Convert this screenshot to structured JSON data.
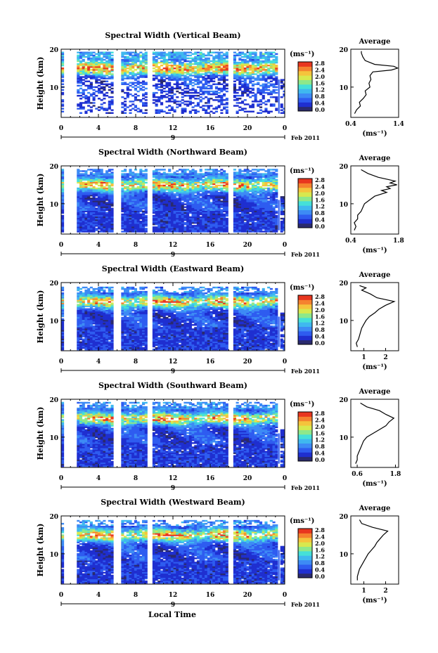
{
  "figure": {
    "xlabel": "Local Time",
    "date_label": "Feb 2011",
    "day_label": "9",
    "cbar_unit": "(ms⁻¹)",
    "avg_title": "Average",
    "avg_xlabel": "(ms⁻¹)"
  },
  "chart_data": [
    {
      "type": "heatmap",
      "title": "Spectral Width (Vertical Beam)",
      "ylabel": "Height (km)",
      "xlim": [
        0,
        24
      ],
      "ylim": [
        2,
        20
      ],
      "xticks": [
        "0",
        "4",
        "8",
        "12",
        "16",
        "20",
        "0"
      ],
      "yticks": [
        "10",
        "20"
      ],
      "cbar_ticks": [
        "0.0",
        "0.4",
        "0.8",
        "1.2",
        "1.6",
        "2.0",
        "2.4",
        "2.8"
      ],
      "coverage": "sparse-upper",
      "bottom": 3.0,
      "top": 19.2,
      "gaps": [
        [
          0.5,
          1.5
        ],
        [
          5.8,
          6.2
        ],
        [
          9.3,
          9.6
        ],
        [
          18.1,
          18.3
        ]
      ],
      "avg": {
        "xticks": [
          "0.4",
          "1.4"
        ],
        "xlim": [
          0.4,
          1.4
        ],
        "ylim": [
          2,
          20
        ],
        "yticks": [
          "10",
          "20"
        ],
        "profile": [
          [
            0.48,
            3
          ],
          [
            0.52,
            4
          ],
          [
            0.6,
            5
          ],
          [
            0.58,
            6
          ],
          [
            0.66,
            7
          ],
          [
            0.72,
            8
          ],
          [
            0.7,
            9
          ],
          [
            0.8,
            10
          ],
          [
            0.78,
            11
          ],
          [
            0.82,
            12
          ],
          [
            0.8,
            13
          ],
          [
            0.86,
            14
          ],
          [
            1.25,
            14.5
          ],
          [
            1.38,
            15
          ],
          [
            1.3,
            15.5
          ],
          [
            0.9,
            16
          ],
          [
            0.7,
            17
          ],
          [
            0.65,
            18
          ],
          [
            0.62,
            19
          ],
          [
            0.62,
            19.5
          ]
        ]
      }
    },
    {
      "type": "heatmap",
      "title": "Spectral Width (Northward Beam)",
      "ylabel": "Height (km)",
      "xlim": [
        0,
        24
      ],
      "ylim": [
        2,
        20
      ],
      "xticks": [
        "0",
        "4",
        "8",
        "12",
        "16",
        "20",
        "0"
      ],
      "yticks": [
        "10",
        "20"
      ],
      "cbar_ticks": [
        "0.0",
        "0.4",
        "0.8",
        "1.2",
        "1.6",
        "2.0",
        "2.4",
        "2.8"
      ],
      "coverage": "dense",
      "bottom": 2.5,
      "top": 19.2,
      "gaps": [
        [
          0.5,
          1.5
        ],
        [
          5.8,
          6.2
        ],
        [
          9.3,
          9.6
        ],
        [
          18.1,
          18.3
        ]
      ],
      "avg": {
        "xticks": [
          "0.4",
          "1.8"
        ],
        "xlim": [
          0.4,
          1.8
        ],
        "ylim": [
          2,
          20
        ],
        "yticks": [
          "10",
          "20"
        ],
        "profile": [
          [
            0.5,
            3
          ],
          [
            0.55,
            4
          ],
          [
            0.5,
            5
          ],
          [
            0.6,
            6
          ],
          [
            0.6,
            7
          ],
          [
            0.7,
            8
          ],
          [
            0.75,
            9
          ],
          [
            0.8,
            10
          ],
          [
            0.95,
            11
          ],
          [
            1.1,
            12
          ],
          [
            1.45,
            13
          ],
          [
            1.3,
            13.5
          ],
          [
            1.55,
            14
          ],
          [
            1.45,
            14.5
          ],
          [
            1.75,
            15
          ],
          [
            1.55,
            15.5
          ],
          [
            1.7,
            16
          ],
          [
            1.2,
            17
          ],
          [
            0.9,
            18
          ],
          [
            0.7,
            19
          ]
        ]
      }
    },
    {
      "type": "heatmap",
      "title": "Spectral Width (Eastward Beam)",
      "ylabel": "Height (km)",
      "xlim": [
        0,
        24
      ],
      "ylim": [
        2,
        20
      ],
      "xticks": [
        "0",
        "4",
        "8",
        "12",
        "16",
        "20",
        "0"
      ],
      "yticks": [
        "10",
        "20"
      ],
      "cbar_ticks": [
        "0.0",
        "0.4",
        "0.8",
        "1.2",
        "1.6",
        "2.0",
        "2.4",
        "2.8"
      ],
      "coverage": "dense",
      "bottom": 2.2,
      "top": 18.8,
      "gaps": [
        [
          0.5,
          1.5
        ],
        [
          5.8,
          6.2
        ],
        [
          9.3,
          9.6
        ],
        [
          18.1,
          18.3
        ]
      ],
      "avg": {
        "xticks": [
          "1",
          "2"
        ],
        "xlim": [
          0.4,
          2.6
        ],
        "ylim": [
          2,
          20
        ],
        "yticks": [
          "10",
          "20"
        ],
        "profile": [
          [
            0.7,
            3
          ],
          [
            0.65,
            4
          ],
          [
            0.75,
            5
          ],
          [
            0.8,
            6
          ],
          [
            0.85,
            7
          ],
          [
            0.9,
            8
          ],
          [
            1.0,
            9
          ],
          [
            1.1,
            10
          ],
          [
            1.25,
            11
          ],
          [
            1.5,
            12
          ],
          [
            1.7,
            13
          ],
          [
            2.0,
            14
          ],
          [
            2.4,
            15
          ],
          [
            1.6,
            16
          ],
          [
            1.3,
            17
          ],
          [
            0.9,
            18
          ],
          [
            1.1,
            18.6
          ],
          [
            0.8,
            19.2
          ]
        ]
      }
    },
    {
      "type": "heatmap",
      "title": "Spectral Width (Southward Beam)",
      "ylabel": "Height (km)",
      "xlim": [
        0,
        24
      ],
      "ylim": [
        2,
        20
      ],
      "xticks": [
        "0",
        "4",
        "8",
        "12",
        "16",
        "20",
        "0"
      ],
      "yticks": [
        "10",
        "20"
      ],
      "cbar_ticks": [
        "0.0",
        "0.4",
        "0.8",
        "1.2",
        "1.6",
        "2.0",
        "2.4",
        "2.8"
      ],
      "coverage": "dense",
      "bottom": 2.2,
      "top": 19.0,
      "gaps": [
        [
          0.5,
          1.5
        ],
        [
          5.8,
          6.2
        ],
        [
          9.3,
          9.6
        ],
        [
          18.1,
          18.3
        ]
      ],
      "avg": {
        "xticks": [
          "0.6",
          "1.8"
        ],
        "xlim": [
          0.4,
          1.9
        ],
        "ylim": [
          2,
          20
        ],
        "yticks": [
          "10",
          "20"
        ],
        "profile": [
          [
            0.55,
            3
          ],
          [
            0.6,
            4
          ],
          [
            0.6,
            5
          ],
          [
            0.65,
            6
          ],
          [
            0.7,
            7
          ],
          [
            0.75,
            8
          ],
          [
            0.8,
            9
          ],
          [
            0.9,
            10
          ],
          [
            1.1,
            11
          ],
          [
            1.3,
            12
          ],
          [
            1.5,
            13
          ],
          [
            1.6,
            14
          ],
          [
            1.75,
            15
          ],
          [
            1.5,
            16
          ],
          [
            1.3,
            17
          ],
          [
            0.9,
            18
          ],
          [
            0.7,
            19
          ]
        ]
      }
    },
    {
      "type": "heatmap",
      "title": "Spectral Width (Westward Beam)",
      "ylabel": "Height (km)",
      "xlim": [
        0,
        24
      ],
      "ylim": [
        2,
        20
      ],
      "xticks": [
        "0",
        "4",
        "8",
        "12",
        "16",
        "20",
        "0"
      ],
      "yticks": [
        "10",
        "20"
      ],
      "cbar_ticks": [
        "0.0",
        "0.4",
        "0.8",
        "1.2",
        "1.6",
        "2.0",
        "2.4",
        "2.8"
      ],
      "coverage": "dense",
      "bottom": 2.2,
      "top": 18.8,
      "gaps": [
        [
          0.5,
          1.5
        ],
        [
          5.8,
          6.2
        ],
        [
          9.3,
          9.6
        ],
        [
          18.1,
          18.3
        ]
      ],
      "avg": {
        "xticks": [
          "1",
          "2"
        ],
        "xlim": [
          0.4,
          2.6
        ],
        "ylim": [
          2,
          20
        ],
        "yticks": [
          "10",
          "20"
        ],
        "profile": [
          [
            0.7,
            3
          ],
          [
            0.7,
            4
          ],
          [
            0.75,
            5
          ],
          [
            0.8,
            6
          ],
          [
            0.9,
            7
          ],
          [
            1.0,
            8
          ],
          [
            1.1,
            9
          ],
          [
            1.2,
            10
          ],
          [
            1.35,
            11
          ],
          [
            1.5,
            12
          ],
          [
            1.6,
            13
          ],
          [
            1.75,
            14
          ],
          [
            1.9,
            15
          ],
          [
            2.1,
            16
          ],
          [
            1.4,
            17
          ],
          [
            0.9,
            18
          ],
          [
            0.8,
            19
          ]
        ]
      }
    }
  ],
  "colors": {
    "colormap": [
      "#2a2a6e",
      "#1f2fd0",
      "#2e5cf0",
      "#3d8bf5",
      "#3fb8ef",
      "#45e0d8",
      "#8ee88a",
      "#d8e84e",
      "#f5c33c",
      "#f5822f",
      "#e8361f"
    ],
    "line": "#000000"
  }
}
